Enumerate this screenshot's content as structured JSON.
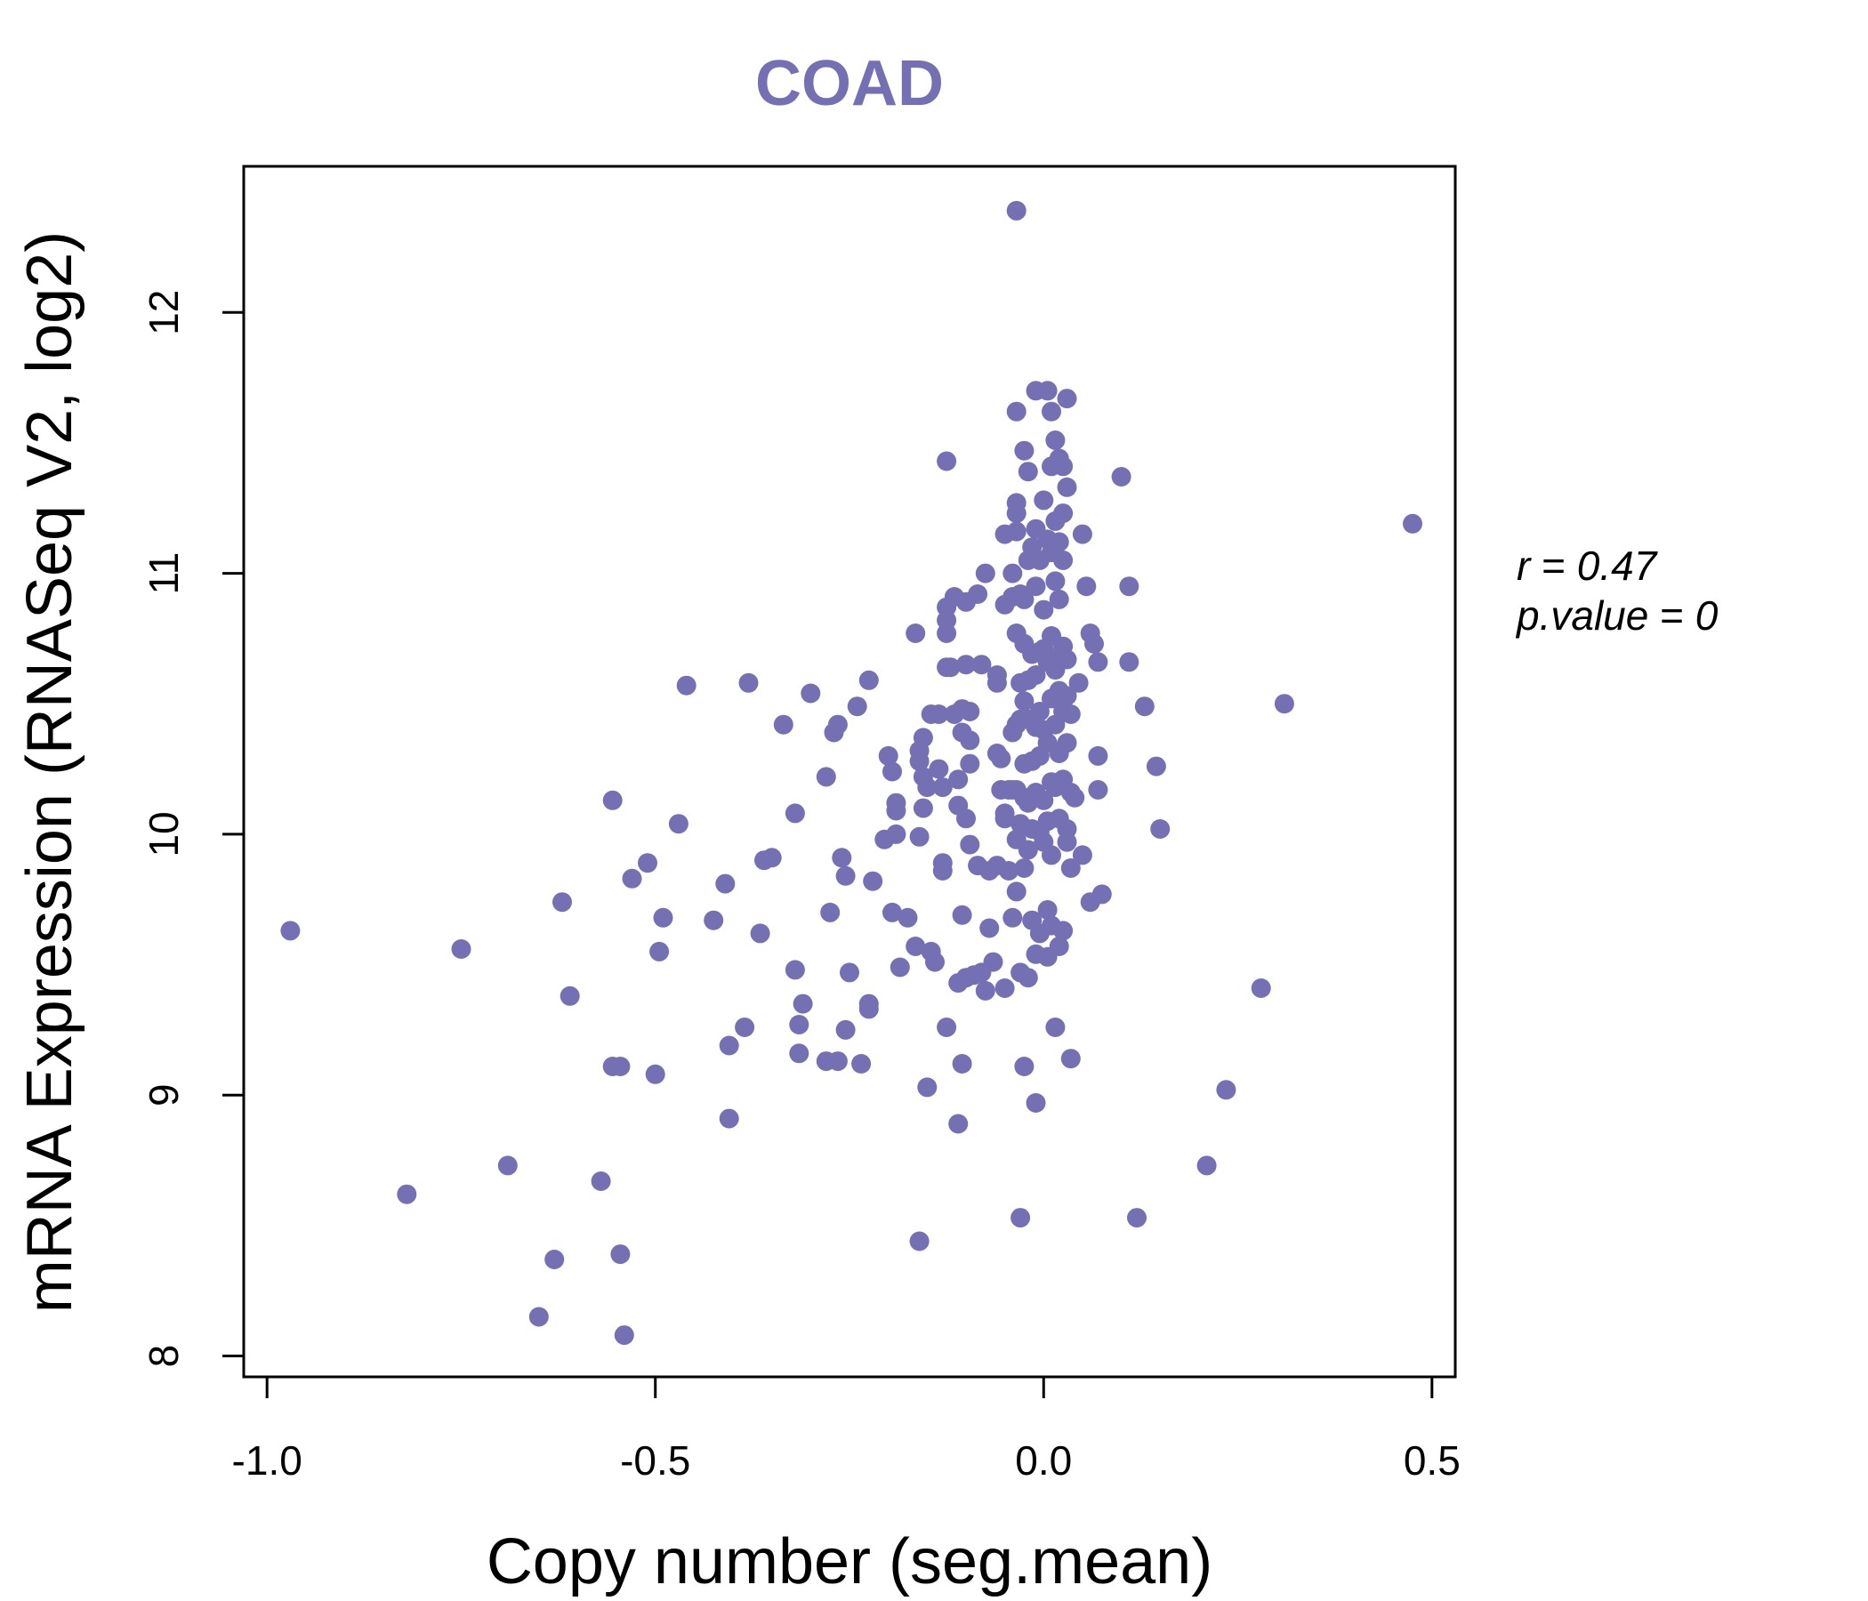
{
  "chart_data": {
    "type": "scatter",
    "title": "COAD",
    "xlabel": "Copy number (seg.mean)",
    "ylabel": "mRNA Expression (RNASeq V2, log2)",
    "xlim": [
      -1.03,
      0.53
    ],
    "ylim": [
      7.92,
      12.56
    ],
    "xticks": [
      -1.0,
      -0.5,
      0.0,
      0.5
    ],
    "xtick_labels": [
      "-1.0",
      "-0.5",
      "0.0",
      "0.5"
    ],
    "yticks": [
      8,
      9,
      10,
      11,
      12
    ],
    "ytick_labels": [
      "8",
      "9",
      "10",
      "11",
      "12"
    ],
    "grid": false,
    "point_color": "#7570b3",
    "stats": {
      "r_label": "r",
      "r_value": "0.47",
      "p_label": "p.value",
      "p_value": "0"
    },
    "points": [
      [
        -0.97,
        9.63
      ],
      [
        -0.82,
        8.62
      ],
      [
        -0.75,
        9.56
      ],
      [
        -0.69,
        8.73
      ],
      [
        -0.65,
        8.15
      ],
      [
        -0.63,
        8.37
      ],
      [
        -0.62,
        9.74
      ],
      [
        -0.61,
        9.38
      ],
      [
        -0.57,
        8.67
      ],
      [
        -0.555,
        10.13
      ],
      [
        -0.555,
        9.11
      ],
      [
        -0.545,
        9.11
      ],
      [
        -0.545,
        8.39
      ],
      [
        -0.54,
        8.08
      ],
      [
        -0.53,
        9.83
      ],
      [
        -0.51,
        9.89
      ],
      [
        -0.5,
        9.08
      ],
      [
        -0.495,
        9.55
      ],
      [
        -0.49,
        9.68
      ],
      [
        -0.47,
        10.04
      ],
      [
        -0.46,
        10.57
      ],
      [
        -0.425,
        9.67
      ],
      [
        -0.41,
        9.81
      ],
      [
        -0.405,
        9.19
      ],
      [
        -0.405,
        8.91
      ],
      [
        -0.385,
        9.26
      ],
      [
        -0.38,
        10.58
      ],
      [
        -0.365,
        9.62
      ],
      [
        -0.36,
        9.9
      ],
      [
        -0.35,
        9.91
      ],
      [
        -0.335,
        10.42
      ],
      [
        -0.32,
        10.08
      ],
      [
        -0.32,
        9.48
      ],
      [
        -0.315,
        9.27
      ],
      [
        -0.315,
        9.16
      ],
      [
        -0.31,
        9.35
      ],
      [
        -0.3,
        10.54
      ],
      [
        -0.28,
        10.22
      ],
      [
        -0.28,
        9.13
      ],
      [
        -0.275,
        9.7
      ],
      [
        -0.27,
        10.39
      ],
      [
        -0.265,
        10.42
      ],
      [
        -0.265,
        9.13
      ],
      [
        -0.26,
        9.91
      ],
      [
        -0.255,
        9.84
      ],
      [
        -0.255,
        9.25
      ],
      [
        -0.25,
        9.47
      ],
      [
        -0.24,
        10.49
      ],
      [
        -0.235,
        9.12
      ],
      [
        -0.225,
        10.59
      ],
      [
        -0.225,
        9.35
      ],
      [
        -0.225,
        9.33
      ],
      [
        -0.22,
        9.82
      ],
      [
        -0.205,
        9.98
      ],
      [
        -0.2,
        10.3
      ],
      [
        -0.195,
        10.24
      ],
      [
        -0.195,
        9.7
      ],
      [
        -0.19,
        10.12
      ],
      [
        -0.19,
        10.09
      ],
      [
        -0.19,
        10.0
      ],
      [
        -0.185,
        9.49
      ],
      [
        -0.175,
        9.68
      ],
      [
        -0.165,
        10.77
      ],
      [
        -0.165,
        9.57
      ],
      [
        -0.16,
        10.28
      ],
      [
        -0.16,
        10.32
      ],
      [
        -0.16,
        9.99
      ],
      [
        -0.16,
        8.44
      ],
      [
        -0.155,
        10.37
      ],
      [
        -0.155,
        10.22
      ],
      [
        -0.155,
        10.1
      ],
      [
        -0.15,
        10.18
      ],
      [
        -0.15,
        9.03
      ],
      [
        -0.145,
        10.46
      ],
      [
        -0.145,
        9.55
      ],
      [
        -0.14,
        9.51
      ],
      [
        -0.135,
        10.46
      ],
      [
        -0.135,
        10.25
      ],
      [
        -0.13,
        10.18
      ],
      [
        -0.13,
        9.86
      ],
      [
        -0.13,
        9.89
      ],
      [
        -0.125,
        11.43
      ],
      [
        -0.125,
        10.87
      ],
      [
        -0.125,
        10.82
      ],
      [
        -0.125,
        10.77
      ],
      [
        -0.125,
        10.64
      ],
      [
        -0.125,
        9.26
      ],
      [
        -0.12,
        10.64
      ],
      [
        -0.115,
        10.91
      ],
      [
        -0.115,
        10.46
      ],
      [
        -0.11,
        10.11
      ],
      [
        -0.11,
        10.21
      ],
      [
        -0.11,
        9.43
      ],
      [
        -0.11,
        8.89
      ],
      [
        -0.105,
        10.48
      ],
      [
        -0.105,
        10.39
      ],
      [
        -0.105,
        9.69
      ],
      [
        -0.105,
        9.12
      ],
      [
        -0.1,
        10.89
      ],
      [
        -0.1,
        10.65
      ],
      [
        -0.1,
        10.06
      ],
      [
        -0.1,
        9.45
      ],
      [
        -0.095,
        10.47
      ],
      [
        -0.095,
        10.36
      ],
      [
        -0.095,
        10.27
      ],
      [
        -0.095,
        9.96
      ],
      [
        -0.09,
        9.46
      ],
      [
        -0.085,
        10.92
      ],
      [
        -0.085,
        9.88
      ],
      [
        -0.08,
        10.65
      ],
      [
        -0.08,
        9.47
      ],
      [
        -0.075,
        11.0
      ],
      [
        -0.075,
        9.4
      ],
      [
        -0.07,
        9.86
      ],
      [
        -0.07,
        9.64
      ],
      [
        -0.065,
        9.51
      ],
      [
        -0.06,
        10.61
      ],
      [
        -0.06,
        10.58
      ],
      [
        -0.06,
        10.31
      ],
      [
        -0.06,
        9.88
      ],
      [
        -0.055,
        10.29
      ],
      [
        -0.055,
        10.17
      ],
      [
        -0.05,
        11.15
      ],
      [
        -0.05,
        10.88
      ],
      [
        -0.05,
        10.08
      ],
      [
        -0.05,
        10.06
      ],
      [
        -0.05,
        9.41
      ],
      [
        -0.045,
        10.17
      ],
      [
        -0.045,
        9.86
      ],
      [
        -0.04,
        11.0
      ],
      [
        -0.04,
        10.91
      ],
      [
        -0.04,
        10.39
      ],
      [
        -0.04,
        10.17
      ],
      [
        -0.04,
        9.68
      ],
      [
        -0.035,
        11.27
      ],
      [
        -0.035,
        11.23
      ],
      [
        -0.035,
        11.16
      ],
      [
        -0.035,
        10.77
      ],
      [
        -0.035,
        10.42
      ],
      [
        -0.035,
        10.17
      ],
      [
        -0.035,
        9.98
      ],
      [
        -0.035,
        9.78
      ],
      [
        -0.035,
        11.62
      ],
      [
        -0.035,
        12.39
      ],
      [
        -0.03,
        10.92
      ],
      [
        -0.03,
        10.58
      ],
      [
        -0.03,
        10.44
      ],
      [
        -0.03,
        10.04
      ],
      [
        -0.03,
        9.47
      ],
      [
        -0.03,
        8.53
      ],
      [
        -0.025,
        11.47
      ],
      [
        -0.025,
        10.9
      ],
      [
        -0.025,
        10.73
      ],
      [
        -0.025,
        10.51
      ],
      [
        -0.025,
        10.27
      ],
      [
        -0.025,
        10.14
      ],
      [
        -0.025,
        9.87
      ],
      [
        -0.025,
        9.11
      ],
      [
        -0.02,
        11.39
      ],
      [
        -0.02,
        11.05
      ],
      [
        -0.02,
        10.59
      ],
      [
        -0.02,
        10.44
      ],
      [
        -0.02,
        10.12
      ],
      [
        -0.02,
        9.94
      ],
      [
        -0.02,
        9.45
      ],
      [
        -0.015,
        11.1
      ],
      [
        -0.015,
        10.69
      ],
      [
        -0.015,
        10.28
      ],
      [
        -0.015,
        10.02
      ],
      [
        -0.015,
        9.67
      ],
      [
        -0.01,
        11.7
      ],
      [
        -0.01,
        11.17
      ],
      [
        -0.01,
        10.95
      ],
      [
        -0.01,
        10.61
      ],
      [
        -0.01,
        10.41
      ],
      [
        -0.01,
        10.16
      ],
      [
        -0.01,
        9.54
      ],
      [
        -0.01,
        8.97
      ],
      [
        -0.005,
        11.05
      ],
      [
        -0.005,
        10.7
      ],
      [
        -0.005,
        10.47
      ],
      [
        -0.005,
        10.3
      ],
      [
        -0.005,
        10.01
      ],
      [
        -0.005,
        9.62
      ],
      [
        0.0,
        11.28
      ],
      [
        0.0,
        10.86
      ],
      [
        0.0,
        10.71
      ],
      [
        0.0,
        10.4
      ],
      [
        0.0,
        10.13
      ],
      [
        0.0,
        9.97
      ],
      [
        0.005,
        11.7
      ],
      [
        0.005,
        11.13
      ],
      [
        0.005,
        10.66
      ],
      [
        0.005,
        10.35
      ],
      [
        0.005,
        10.05
      ],
      [
        0.005,
        9.71
      ],
      [
        0.005,
        9.53
      ],
      [
        0.01,
        11.62
      ],
      [
        0.01,
        11.41
      ],
      [
        0.01,
        11.08
      ],
      [
        0.01,
        10.76
      ],
      [
        0.01,
        10.52
      ],
      [
        0.01,
        10.2
      ],
      [
        0.01,
        9.92
      ],
      [
        0.01,
        9.65
      ],
      [
        0.015,
        11.51
      ],
      [
        0.015,
        11.2
      ],
      [
        0.015,
        10.97
      ],
      [
        0.015,
        10.63
      ],
      [
        0.015,
        10.42
      ],
      [
        0.015,
        10.18
      ],
      [
        0.015,
        9.26
      ],
      [
        0.02,
        11.44
      ],
      [
        0.02,
        11.12
      ],
      [
        0.02,
        10.9
      ],
      [
        0.02,
        10.68
      ],
      [
        0.02,
        10.55
      ],
      [
        0.02,
        10.31
      ],
      [
        0.02,
        10.06
      ],
      [
        0.02,
        9.57
      ],
      [
        0.025,
        11.41
      ],
      [
        0.025,
        11.23
      ],
      [
        0.025,
        11.05
      ],
      [
        0.025,
        10.72
      ],
      [
        0.025,
        10.47
      ],
      [
        0.025,
        10.21
      ],
      [
        0.025,
        9.63
      ],
      [
        0.03,
        11.67
      ],
      [
        0.03,
        11.33
      ],
      [
        0.03,
        10.67
      ],
      [
        0.03,
        10.53
      ],
      [
        0.03,
        10.35
      ],
      [
        0.03,
        10.02
      ],
      [
        0.03,
        9.97
      ],
      [
        0.035,
        10.46
      ],
      [
        0.035,
        10.16
      ],
      [
        0.035,
        9.87
      ],
      [
        0.035,
        9.14
      ],
      [
        0.04,
        10.14
      ],
      [
        0.045,
        10.58
      ],
      [
        0.05,
        11.15
      ],
      [
        0.05,
        9.92
      ],
      [
        0.055,
        10.95
      ],
      [
        0.06,
        10.77
      ],
      [
        0.06,
        9.74
      ],
      [
        0.065,
        10.73
      ],
      [
        0.07,
        10.66
      ],
      [
        0.07,
        10.3
      ],
      [
        0.07,
        10.17
      ],
      [
        0.075,
        9.77
      ],
      [
        0.1,
        11.37
      ],
      [
        0.11,
        10.95
      ],
      [
        0.11,
        10.66
      ],
      [
        0.12,
        8.53
      ],
      [
        0.13,
        10.49
      ],
      [
        0.145,
        10.26
      ],
      [
        0.15,
        10.02
      ],
      [
        0.21,
        8.73
      ],
      [
        0.235,
        9.02
      ],
      [
        0.28,
        9.41
      ],
      [
        0.31,
        10.5
      ],
      [
        0.475,
        11.19
      ]
    ]
  }
}
